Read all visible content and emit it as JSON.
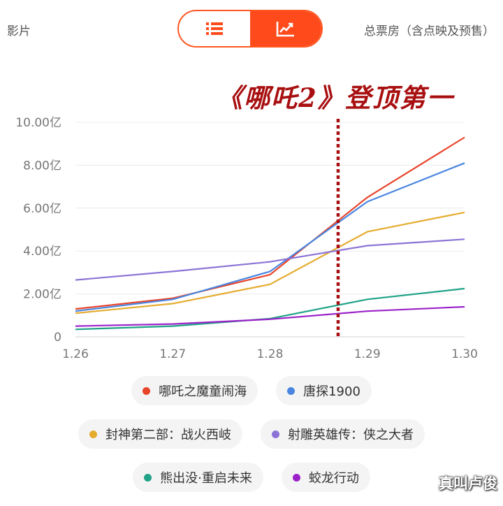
{
  "header": {
    "left_label": "影片",
    "right_label": "总票房（含点映及预售）",
    "toggle": [
      {
        "icon": "list-icon",
        "active": false
      },
      {
        "icon": "trend-chart-icon",
        "active": true
      }
    ]
  },
  "headline": "《哪吒2》登顶第一",
  "watermark": "真叫卢俊",
  "chart_data": {
    "type": "line",
    "x": [
      "1.26",
      "1.27",
      "1.28",
      "1.29",
      "1.30"
    ],
    "y_tick_labels": [
      "0",
      "2.00亿",
      "4.00亿",
      "6.00亿",
      "8.00亿",
      "10.00亿"
    ],
    "ylim": [
      0,
      10
    ],
    "ylabel_unit": "亿",
    "grid": true,
    "marker_line": {
      "x": 1.287,
      "color": "#a80f10",
      "style": "dotted"
    },
    "series": [
      {
        "name": "哪吒之魔童闹海",
        "color": "#e8442a",
        "values": [
          1.3,
          1.8,
          2.9,
          6.5,
          9.3
        ]
      },
      {
        "name": "唐探1900",
        "color": "#4a86e0",
        "values": [
          1.2,
          1.75,
          3.05,
          6.3,
          8.1
        ]
      },
      {
        "name": "封神第二部：战火西岐",
        "color": "#e5ac2e",
        "values": [
          1.1,
          1.55,
          2.45,
          4.9,
          5.8
        ]
      },
      {
        "name": "射雕英雄传：侠之大者",
        "color": "#8b74d6",
        "values": [
          2.65,
          3.05,
          3.5,
          4.25,
          4.55
        ]
      },
      {
        "name": "熊出没·重启未来",
        "color": "#20a387",
        "values": [
          0.35,
          0.5,
          0.85,
          1.75,
          2.25
        ]
      },
      {
        "name": "蛟龙行动",
        "color": "#9b22c9",
        "values": [
          0.5,
          0.6,
          0.82,
          1.2,
          1.4
        ]
      }
    ]
  }
}
